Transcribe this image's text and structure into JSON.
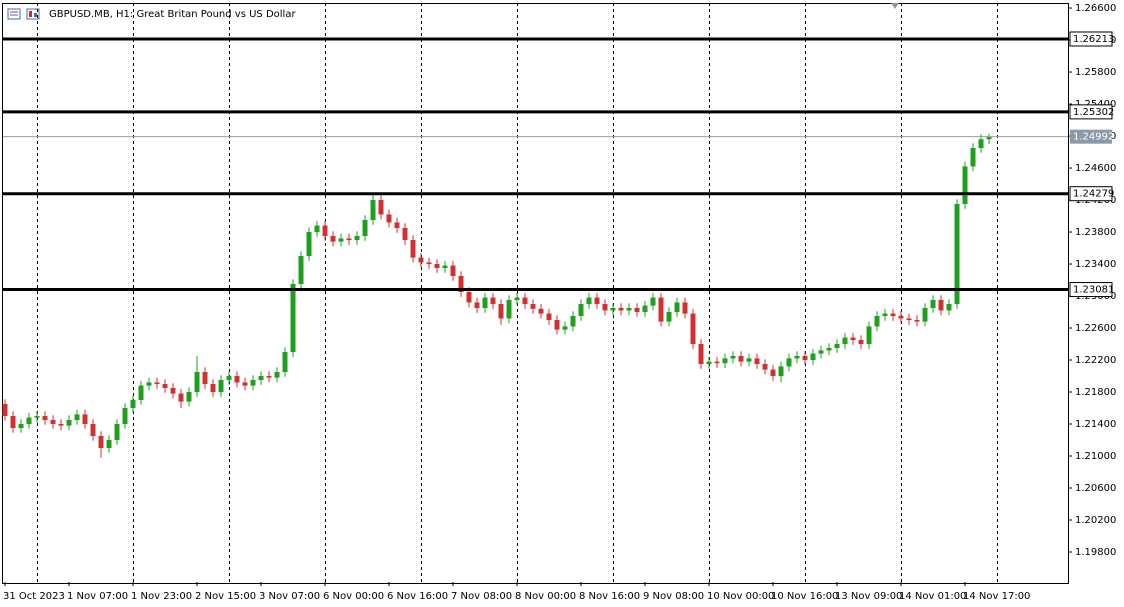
{
  "chart_data": {
    "type": "candlestick",
    "title": "GBPUSD.MB, H1:  Great Britan Pound vs US Dollar",
    "categories": [
      "31 Oct 2023",
      null,
      null,
      null,
      null,
      null,
      null,
      null,
      "1 Nov 07:00",
      null,
      null,
      null,
      null,
      null,
      null,
      null,
      "1 Nov 23:00",
      null,
      null,
      null,
      null,
      null,
      null,
      null,
      "2 Nov 15:00",
      null,
      null,
      null,
      null,
      null,
      null,
      null,
      "3 Nov 07:00",
      null,
      null,
      null,
      null,
      null,
      null,
      null,
      "6 Nov 00:00",
      null,
      null,
      null,
      null,
      null,
      null,
      null,
      "6 Nov 16:00",
      null,
      null,
      null,
      null,
      null,
      null,
      null,
      "7 Nov 08:00",
      null,
      null,
      null,
      null,
      null,
      null,
      null,
      "8 Nov 00:00",
      null,
      null,
      null,
      null,
      null,
      null,
      null,
      "8 Nov 16:00",
      null,
      null,
      null,
      null,
      null,
      null,
      null,
      "9 Nov 08:00",
      null,
      null,
      null,
      null,
      null,
      null,
      null,
      "10 Nov 00:00",
      null,
      null,
      null,
      null,
      null,
      null,
      null,
      "10 Nov 16:00",
      null,
      null,
      null,
      null,
      null,
      null,
      null,
      "13 Nov 09:00",
      null,
      null,
      null,
      null,
      null,
      null,
      null,
      "14 Nov 01:00",
      null,
      null,
      null,
      null,
      null,
      null,
      null,
      "14 Nov 17:00",
      null,
      null,
      null
    ],
    "open": [
      1.2165,
      1.215,
      1.2135,
      1.214,
      1.2148,
      1.215,
      1.2145,
      1.214,
      1.2138,
      1.2145,
      1.2152,
      1.214,
      1.2125,
      1.211,
      1.212,
      1.214,
      1.216,
      1.217,
      1.2188,
      1.2192,
      1.219,
      1.2185,
      1.2178,
      1.2168,
      1.218,
      1.2205,
      1.219,
      1.218,
      1.2195,
      1.22,
      1.2192,
      1.2188,
      1.2195,
      1.22,
      1.2198,
      1.2205,
      1.223,
      1.2315,
      1.235,
      1.238,
      1.2388,
      1.2375,
      1.2368,
      1.2372,
      1.237,
      1.2375,
      1.2395,
      1.242,
      1.2402,
      1.2392,
      1.2385,
      1.237,
      1.2348,
      1.2342,
      1.234,
      1.2335,
      1.2338,
      1.2325,
      1.2305,
      1.2292,
      1.2285,
      1.2298,
      1.229,
      1.2272,
      1.2295,
      1.2298,
      1.229,
      1.2284,
      1.2278,
      1.227,
      1.2258,
      1.2262,
      1.2275,
      1.229,
      1.2298,
      1.229,
      1.2282,
      1.2285,
      1.2282,
      1.2285,
      1.228,
      1.2288,
      1.2298,
      1.2268,
      1.228,
      1.2292,
      1.2278,
      1.224,
      1.2215,
      1.2218,
      1.2216,
      1.2222,
      1.2225,
      1.2218,
      1.2222,
      1.2215,
      1.2208,
      1.22,
      1.2212,
      1.2222,
      1.2225,
      1.222,
      1.2228,
      1.2232,
      1.2235,
      1.224,
      1.2248,
      1.2245,
      1.224,
      1.2262,
      1.2275,
      1.2278,
      1.2275,
      1.2272,
      1.227,
      1.2268,
      1.2285,
      1.2295,
      1.2282,
      1.229,
      1.2415,
      1.2462,
      1.2485,
      1.2496
    ],
    "high": [
      1.2171,
      1.2156,
      1.2146,
      1.2154,
      1.2156,
      1.2156,
      1.2151,
      1.2146,
      1.2151,
      1.2158,
      1.2158,
      1.2146,
      1.2131,
      1.2126,
      1.2146,
      1.2166,
      1.2176,
      1.2194,
      1.2198,
      1.2198,
      1.2196,
      1.2191,
      1.2184,
      1.2186,
      1.2225,
      1.2211,
      1.2196,
      1.2201,
      1.2206,
      1.2206,
      1.2198,
      1.2201,
      1.2206,
      1.2206,
      1.2211,
      1.2236,
      1.2321,
      1.2356,
      1.2386,
      1.2394,
      1.2394,
      1.2381,
      1.2378,
      1.2378,
      1.2381,
      1.2401,
      1.2428,
      1.2426,
      1.2408,
      1.2398,
      1.2391,
      1.2376,
      1.2354,
      1.2348,
      1.2346,
      1.2344,
      1.2344,
      1.2331,
      1.2311,
      1.2298,
      1.2304,
      1.2304,
      1.2296,
      1.2301,
      1.2304,
      1.2304,
      1.2296,
      1.229,
      1.2284,
      1.2276,
      1.2268,
      1.2281,
      1.2296,
      1.2304,
      1.2304,
      1.2296,
      1.2291,
      1.2291,
      1.2291,
      1.2291,
      1.2294,
      1.2304,
      1.2304,
      1.2286,
      1.2298,
      1.2298,
      1.2284,
      1.2246,
      1.2224,
      1.2224,
      1.2228,
      1.2231,
      1.2231,
      1.2228,
      1.2228,
      1.2221,
      1.2214,
      1.2218,
      1.2228,
      1.2231,
      1.2231,
      1.2234,
      1.2238,
      1.2241,
      1.2246,
      1.2254,
      1.2254,
      1.2251,
      1.2268,
      1.2281,
      1.2284,
      1.2284,
      1.2281,
      1.2278,
      1.2276,
      1.2291,
      1.2301,
      1.2301,
      1.2296,
      1.2421,
      1.2468,
      1.2491,
      1.2502,
      1.2503
    ],
    "low": [
      1.2144,
      1.2129,
      1.2129,
      1.2134,
      1.2142,
      1.2139,
      1.2134,
      1.2132,
      1.2132,
      1.2139,
      1.2134,
      1.2119,
      1.2098,
      1.2104,
      1.2114,
      1.2134,
      1.2154,
      1.2164,
      1.2182,
      1.2184,
      1.2179,
      1.2172,
      1.216,
      1.2162,
      1.2174,
      1.2184,
      1.2174,
      1.2174,
      1.2189,
      1.2186,
      1.2182,
      1.2182,
      1.2189,
      1.2192,
      1.2192,
      1.2199,
      1.2224,
      1.2309,
      1.2344,
      1.2374,
      1.2369,
      1.2362,
      1.2362,
      1.2364,
      1.2364,
      1.2369,
      1.2389,
      1.2396,
      1.2386,
      1.2379,
      1.2364,
      1.2342,
      1.2336,
      1.2334,
      1.2329,
      1.2329,
      1.2319,
      1.2299,
      1.2286,
      1.2279,
      1.2279,
      1.2284,
      1.2264,
      1.2266,
      1.2289,
      1.2284,
      1.2278,
      1.2272,
      1.2264,
      1.2252,
      1.2252,
      1.2256,
      1.2269,
      1.2284,
      1.2284,
      1.2276,
      1.2276,
      1.2276,
      1.2276,
      1.2274,
      1.2274,
      1.2282,
      1.2262,
      1.2262,
      1.2274,
      1.2272,
      1.2234,
      1.2209,
      1.2209,
      1.221,
      1.221,
      1.2216,
      1.2212,
      1.2212,
      1.2209,
      1.2202,
      1.2194,
      1.2192,
      1.2206,
      1.2216,
      1.2214,
      1.2214,
      1.2222,
      1.2226,
      1.2229,
      1.2234,
      1.2239,
      1.2234,
      1.2234,
      1.2256,
      1.2269,
      1.2269,
      1.2266,
      1.2264,
      1.2262,
      1.2262,
      1.2279,
      1.2276,
      1.2276,
      1.2284,
      1.2409,
      1.2456,
      1.2479,
      1.249
    ],
    "close": [
      1.215,
      1.2135,
      1.214,
      1.2148,
      1.215,
      1.2145,
      1.214,
      1.2138,
      1.2145,
      1.2152,
      1.214,
      1.2125,
      1.211,
      1.212,
      1.214,
      1.216,
      1.217,
      1.2188,
      1.2192,
      1.219,
      1.2185,
      1.2178,
      1.2168,
      1.218,
      1.2205,
      1.219,
      1.218,
      1.2195,
      1.22,
      1.2192,
      1.2188,
      1.2195,
      1.22,
      1.2198,
      1.2205,
      1.223,
      1.2315,
      1.235,
      1.238,
      1.2388,
      1.2375,
      1.2368,
      1.2372,
      1.237,
      1.2375,
      1.2395,
      1.242,
      1.2402,
      1.2392,
      1.2385,
      1.237,
      1.2348,
      1.2342,
      1.234,
      1.2335,
      1.2338,
      1.2325,
      1.2305,
      1.2292,
      1.2285,
      1.2298,
      1.229,
      1.2272,
      1.2295,
      1.2298,
      1.229,
      1.2284,
      1.2278,
      1.227,
      1.2258,
      1.2262,
      1.2275,
      1.229,
      1.2298,
      1.229,
      1.2282,
      1.2285,
      1.2282,
      1.2285,
      1.228,
      1.2288,
      1.2298,
      1.2268,
      1.228,
      1.2292,
      1.2278,
      1.224,
      1.2215,
      1.2218,
      1.2216,
      1.2222,
      1.2225,
      1.2218,
      1.2222,
      1.2215,
      1.2208,
      1.22,
      1.2212,
      1.2222,
      1.2225,
      1.222,
      1.2228,
      1.2232,
      1.2235,
      1.224,
      1.2248,
      1.2245,
      1.224,
      1.2262,
      1.2275,
      1.2278,
      1.2275,
      1.2272,
      1.227,
      1.2268,
      1.2285,
      1.2295,
      1.2282,
      1.229,
      1.2415,
      1.2462,
      1.2485,
      1.2496,
      1.24992
    ],
    "up_color": "#1fa01f",
    "down_color": "#d03030",
    "ylim": [
      1.19425,
      1.26663
    ],
    "yticks": [
      {
        "value": 1.266,
        "label": "1.26600"
      },
      {
        "value": 1.262,
        "label": "1.26200"
      },
      {
        "value": 1.258,
        "label": "1.25800"
      },
      {
        "value": 1.254,
        "label": "1.25400"
      },
      {
        "value": 1.25,
        "label": "1.25000"
      },
      {
        "value": 1.246,
        "label": "1.24600"
      },
      {
        "value": 1.242,
        "label": "1.24200"
      },
      {
        "value": 1.238,
        "label": "1.23800"
      },
      {
        "value": 1.234,
        "label": "1.23400"
      },
      {
        "value": 1.23,
        "label": "1.23000"
      },
      {
        "value": 1.226,
        "label": "1.22600"
      },
      {
        "value": 1.222,
        "label": "1.22200"
      },
      {
        "value": 1.218,
        "label": "1.21800"
      },
      {
        "value": 1.214,
        "label": "1.21400"
      },
      {
        "value": 1.21,
        "label": "1.21000"
      },
      {
        "value": 1.206,
        "label": "1.20600"
      },
      {
        "value": 1.202,
        "label": "1.20200"
      },
      {
        "value": 1.198,
        "label": "1.19800"
      }
    ],
    "levels": [
      1.26213,
      1.25302,
      1.24279,
      1.23081
    ],
    "current_price": 1.24992,
    "grid": true
  }
}
